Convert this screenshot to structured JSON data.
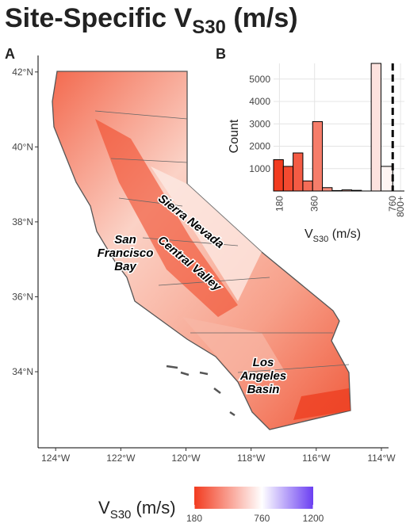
{
  "title": {
    "main": "Site-Specific V",
    "sub": "S30",
    "unit": " (m/s)"
  },
  "chart_data": [
    {
      "type": "map",
      "panel": "A",
      "xlim": [
        -124.54,
        -113.78
      ],
      "ylim": [
        31.97,
        42.44
      ],
      "xticks": [
        {
          "value": -124,
          "label": "124°W"
        },
        {
          "value": -122,
          "label": "122°W"
        },
        {
          "value": -120,
          "label": "120°W"
        },
        {
          "value": -118,
          "label": "118°W"
        },
        {
          "value": -116,
          "label": "116°W"
        },
        {
          "value": -114,
          "label": "114°W"
        }
      ],
      "yticks": [
        {
          "value": 34,
          "label": "34°N"
        },
        {
          "value": 36,
          "label": "36°N"
        },
        {
          "value": 38,
          "label": "38°N"
        },
        {
          "value": 40,
          "label": "40°N"
        },
        {
          "value": 42,
          "label": "42°N"
        }
      ],
      "annotations": [
        "Sierra Nevada",
        "Central Valley",
        [
          "San",
          "Francisco",
          "Bay"
        ],
        [
          "Los",
          "Angeles",
          "Basin"
        ]
      ],
      "colorbar": {
        "label": {
          "main": "V",
          "sub": "S30",
          "unit": " (m/s)"
        },
        "lim": [
          180,
          1200
        ],
        "ticks": [
          180,
          760,
          1200
        ],
        "colors": [
          "#f23b1f",
          "#ffffff",
          "#6b3ff2"
        ]
      }
    },
    {
      "type": "histogram",
      "panel": "B",
      "bins": [
        150,
        200,
        250,
        300,
        350,
        400,
        450,
        500,
        550,
        600,
        650,
        700,
        760
      ],
      "counts": [
        1400,
        1100,
        1700,
        450,
        3100,
        150,
        20,
        50,
        30,
        0,
        5700,
        1100
      ],
      "xlim": [
        150,
        820
      ],
      "ylim": [
        0,
        5700
      ],
      "xticks": [
        180,
        360,
        760,
        {
          "value": 800,
          "label": "800+"
        }
      ],
      "yticks": [
        1000,
        2000,
        3000,
        4000,
        5000
      ],
      "reference_line": 760,
      "grid": true,
      "ylabel": "Count",
      "xlabel": {
        "main": "V",
        "sub": "S30",
        "unit": " (m/s)"
      }
    }
  ]
}
